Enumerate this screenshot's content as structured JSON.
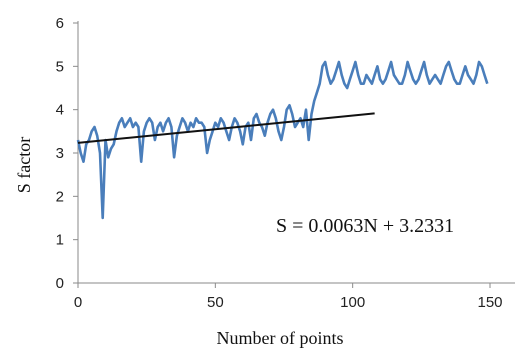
{
  "chart_data": {
    "type": "line",
    "xlabel": "Number of points",
    "ylabel": "S factor",
    "xlim": [
      0,
      150
    ],
    "ylim": [
      0,
      6
    ],
    "x_ticks": [
      "0",
      "50",
      "100",
      "150"
    ],
    "y_ticks": [
      "0",
      "1",
      "2",
      "3",
      "4",
      "5",
      "6"
    ],
    "grid": false,
    "annotation": "S = 0.0063N + 3.2331",
    "series": [
      {
        "color": "#4a7ebb",
        "x": [
          0,
          1,
          2,
          3,
          4,
          5,
          6,
          7,
          8,
          9,
          10,
          11,
          12,
          13,
          14,
          15,
          16,
          17,
          18,
          19,
          20,
          21,
          22,
          23,
          24,
          25,
          26,
          27,
          28,
          29,
          30,
          31,
          32,
          33,
          34,
          35,
          36,
          37,
          38,
          39,
          40,
          41,
          42,
          43,
          44,
          45,
          46,
          47,
          48,
          49,
          50,
          51,
          52,
          53,
          54,
          55,
          56,
          57,
          58,
          59,
          60,
          61,
          62,
          63,
          64,
          65,
          66,
          67,
          68,
          69,
          70,
          71,
          72,
          73,
          74,
          75,
          76,
          77,
          78,
          79,
          80,
          81,
          82,
          83,
          84,
          85,
          86,
          87,
          88,
          89,
          90,
          91,
          92,
          93,
          94,
          95,
          96,
          97,
          98,
          99,
          100,
          101,
          102,
          103,
          104,
          105,
          106,
          107,
          108,
          109,
          110,
          111,
          112,
          113,
          114,
          115,
          116,
          117,
          118,
          119,
          120,
          121,
          122,
          123,
          124,
          125,
          126,
          127,
          128,
          129,
          130,
          131,
          132,
          133,
          134,
          135,
          136,
          137,
          138,
          139,
          140,
          141,
          142,
          143,
          144,
          145,
          146,
          147,
          148,
          149
        ],
        "y": [
          3.3,
          3.0,
          2.8,
          3.2,
          3.3,
          3.5,
          3.6,
          3.4,
          3.0,
          1.5,
          3.3,
          2.9,
          3.1,
          3.2,
          3.5,
          3.7,
          3.8,
          3.6,
          3.7,
          3.8,
          3.6,
          3.7,
          3.6,
          2.8,
          3.5,
          3.7,
          3.8,
          3.7,
          3.3,
          3.6,
          3.7,
          3.5,
          3.7,
          3.8,
          3.6,
          2.9,
          3.4,
          3.6,
          3.8,
          3.7,
          3.5,
          3.7,
          3.6,
          3.8,
          3.7,
          3.7,
          3.6,
          3.0,
          3.3,
          3.5,
          3.7,
          3.6,
          3.8,
          3.7,
          3.5,
          3.3,
          3.6,
          3.8,
          3.7,
          3.5,
          3.2,
          3.6,
          3.7,
          3.3,
          3.8,
          3.9,
          3.7,
          3.6,
          3.4,
          3.7,
          3.9,
          4.0,
          3.8,
          3.5,
          3.3,
          3.6,
          4.0,
          4.1,
          3.9,
          3.6,
          3.7,
          3.8,
          3.6,
          4.0,
          3.3,
          3.9,
          4.2,
          4.4,
          4.6,
          5.0,
          5.1,
          4.8,
          4.6,
          4.7,
          4.9,
          5.1,
          4.8,
          4.6,
          4.5,
          4.7,
          4.9,
          5.1,
          4.8,
          4.6,
          4.6,
          4.8,
          4.7,
          4.6,
          4.8,
          5.0,
          4.7,
          4.6,
          4.7,
          4.9,
          5.1,
          4.8,
          4.7,
          4.6,
          4.6,
          4.8,
          5.1,
          4.9,
          4.7,
          4.6,
          4.7,
          4.9,
          5.1,
          4.8,
          4.6,
          4.7,
          4.8,
          4.7,
          4.6,
          4.8,
          5.0,
          5.1,
          4.9,
          4.7,
          4.6,
          4.6,
          4.8,
          5.0,
          4.8,
          4.7,
          4.6,
          4.8,
          5.1,
          5.0,
          4.8,
          4.6
        ]
      }
    ],
    "trendline": {
      "color": "#111111",
      "x": [
        0,
        108
      ],
      "slope": 0.0063,
      "intercept": 3.2331
    }
  }
}
